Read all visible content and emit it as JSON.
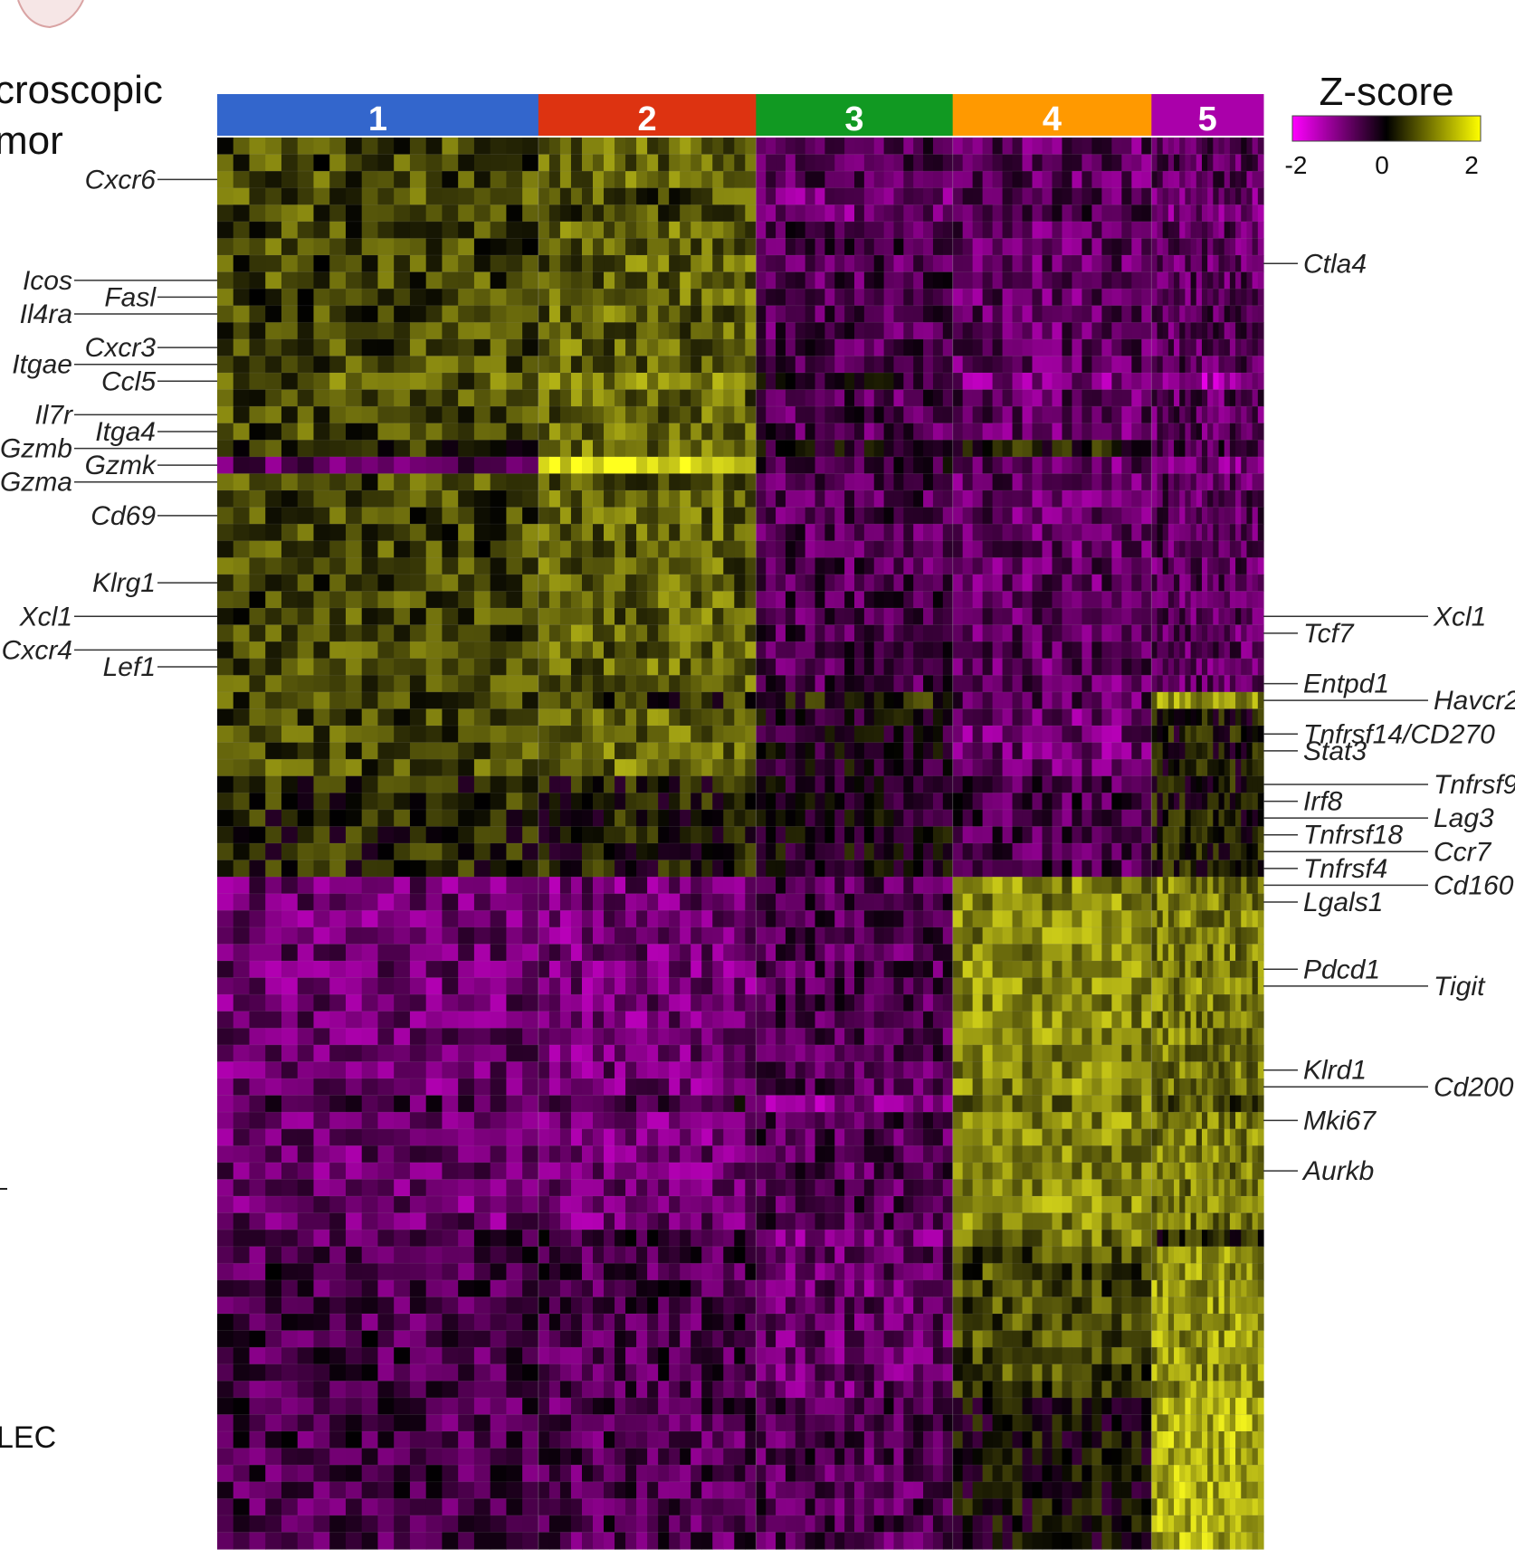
{
  "chart_data": {
    "type": "heatmap",
    "fragments": {
      "line1": "croscopic",
      "line2": "mor",
      "line3": "LEC"
    },
    "legend": {
      "title": "Z-score",
      "ticks": [
        "-2",
        "0",
        "2"
      ],
      "min": -2,
      "max": 2
    },
    "colors": {
      "low": "#ff00ff",
      "mid": "#000000",
      "high": "#ffff00"
    },
    "clusters": [
      {
        "label": "1",
        "color": "#3366cc",
        "fraction": 0.307
      },
      {
        "label": "2",
        "color": "#dd3311",
        "fraction": 0.208
      },
      {
        "label": "3",
        "color": "#119922",
        "fraction": 0.188
      },
      {
        "label": "4",
        "color": "#ff9900",
        "fraction": 0.19
      },
      {
        "label": "5",
        "color": "#aa00aa",
        "fraction": 0.107
      }
    ],
    "row_groups": [
      {
        "count": 34,
        "z": [
          0.55,
          0.75,
          -0.6,
          -0.75,
          -0.7
        ]
      },
      {
        "count": 4,
        "z": [
          0.6,
          0.85,
          -0.2,
          -0.9,
          0.1
        ]
      },
      {
        "count": 6,
        "z": [
          0.25,
          0.15,
          -0.15,
          -0.55,
          0.15
        ]
      },
      {
        "count": 22,
        "z": [
          -0.85,
          -0.9,
          -0.6,
          1.05,
          0.95
        ]
      },
      {
        "count": 9,
        "z": [
          -0.55,
          -0.55,
          -0.8,
          0.55,
          1.15
        ]
      },
      {
        "count": 9,
        "z": [
          -0.55,
          -0.6,
          -0.6,
          0.0,
          1.35
        ]
      }
    ],
    "special_rows": [
      {
        "row": 3,
        "z": [
          0.55,
          0.6,
          -0.9,
          -0.7,
          -0.8
        ]
      },
      {
        "row": 4,
        "z": [
          0.55,
          0.6,
          -0.9,
          -0.6,
          -0.9
        ]
      },
      {
        "row": 14,
        "z": [
          0.7,
          0.95,
          -0.3,
          -1.0,
          -1.3
        ]
      },
      {
        "row": 18,
        "z": [
          0.3,
          0.9,
          -0.2,
          0.2,
          -0.6
        ]
      },
      {
        "row": 19,
        "z": [
          -0.8,
          1.9,
          -0.4,
          -0.8,
          -0.9
        ]
      },
      {
        "row": 33,
        "z": [
          0.6,
          0.3,
          0.2,
          -0.7,
          1.1
        ]
      },
      {
        "row": 57,
        "z": [
          -0.6,
          -0.4,
          -1.1,
          0.9,
          0.6
        ]
      },
      {
        "row": 65,
        "z": [
          -0.6,
          -0.5,
          -1.0,
          0.9,
          0.2
        ]
      }
    ],
    "left_labels": [
      {
        "text": "Cxcr6",
        "row": 2,
        "col": 1
      },
      {
        "text": "Icos",
        "row": 8,
        "col": 0
      },
      {
        "text": "Fasl",
        "row": 9,
        "col": 1
      },
      {
        "text": "Il4ra",
        "row": 10,
        "col": 0
      },
      {
        "text": "Cxcr3",
        "row": 12,
        "col": 1
      },
      {
        "text": "Itgae",
        "row": 13,
        "col": 0
      },
      {
        "text": "Ccl5",
        "row": 14,
        "col": 1
      },
      {
        "text": "Il7r",
        "row": 16,
        "col": 0
      },
      {
        "text": "Itga4",
        "row": 17,
        "col": 1
      },
      {
        "text": "Gzmb",
        "row": 18,
        "col": 0
      },
      {
        "text": "Gzmk",
        "row": 19,
        "col": 1
      },
      {
        "text": "Gzma",
        "row": 20,
        "col": 0
      },
      {
        "text": "Cd69",
        "row": 22,
        "col": 1
      },
      {
        "text": "Klrg1",
        "row": 26,
        "col": 1
      },
      {
        "text": "Xcl1",
        "row": 28,
        "col": 0
      },
      {
        "text": "Cxcr4",
        "row": 30,
        "col": 0
      },
      {
        "text": "Lef1",
        "row": 31,
        "col": 1
      }
    ],
    "right_labels": [
      {
        "text": "Ctla4",
        "row": 7,
        "col": 0
      },
      {
        "text": "Xcl1",
        "row": 28,
        "col": 1
      },
      {
        "text": "Tcf7",
        "row": 29,
        "col": 0
      },
      {
        "text": "Entpd1",
        "row": 32,
        "col": 0
      },
      {
        "text": "Havcr2",
        "row": 33,
        "col": 1
      },
      {
        "text": "Tnfrsf14/CD270",
        "row": 35,
        "col": 0
      },
      {
        "text": "Stat3",
        "row": 36,
        "col": 0
      },
      {
        "text": "Tnfrsf9",
        "row": 38,
        "col": 1
      },
      {
        "text": "Irf8",
        "row": 39,
        "col": 0
      },
      {
        "text": "Lag3",
        "row": 40,
        "col": 1
      },
      {
        "text": "Tnfrsf18",
        "row": 41,
        "col": 0
      },
      {
        "text": "Ccr7",
        "row": 42,
        "col": 1
      },
      {
        "text": "Tnfrsf4",
        "row": 43,
        "col": 0
      },
      {
        "text": "Cd160",
        "row": 44,
        "col": 1
      },
      {
        "text": "Lgals1",
        "row": 45,
        "col": 0
      },
      {
        "text": "Pdcd1",
        "row": 49,
        "col": 0
      },
      {
        "text": "Tigit",
        "row": 50,
        "col": 1
      },
      {
        "text": "Klrd1",
        "row": 55,
        "col": 0
      },
      {
        "text": "Cd200",
        "row": 56,
        "col": 1
      },
      {
        "text": "Mki67",
        "row": 58,
        "col": 0
      },
      {
        "text": "Aurkb",
        "row": 61,
        "col": 0
      }
    ]
  }
}
